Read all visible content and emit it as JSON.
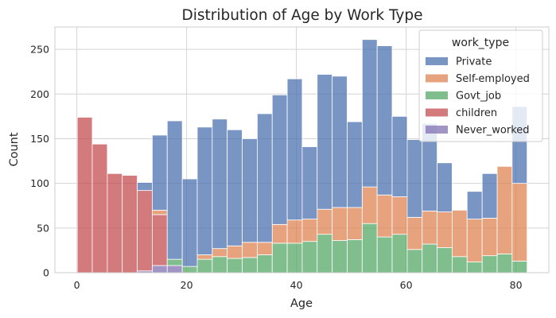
{
  "chart_data": {
    "type": "bar",
    "stacked": true,
    "title": "Distribution of Age by Work Type",
    "xlabel": "Age",
    "ylabel": "Count",
    "xlim": [
      -4,
      86
    ],
    "ylim": [
      0,
      275
    ],
    "x_ticks": [
      0,
      20,
      40,
      60,
      80
    ],
    "y_ticks": [
      0,
      50,
      100,
      150,
      200,
      250
    ],
    "grid": true,
    "legend_title": "work_type",
    "legend_position": "top-right",
    "bin_edges": [
      0.08,
      2.81,
      5.55,
      8.28,
      11.01,
      13.74,
      16.47,
      19.21,
      21.94,
      24.67,
      27.4,
      30.13,
      32.87,
      35.6,
      38.33,
      41.06,
      43.79,
      46.53,
      49.26,
      51.99,
      54.72,
      57.45,
      60.19,
      62.92,
      65.65,
      68.38,
      71.11,
      73.85,
      76.58,
      79.31,
      82.04
    ],
    "series": [
      {
        "name": "Never_worked",
        "color": "#8172b3",
        "values": [
          0,
          0,
          0,
          0,
          2,
          8,
          8,
          0,
          0,
          0,
          0,
          0,
          0,
          0,
          0,
          0,
          0,
          0,
          0,
          0,
          0,
          0,
          0,
          0,
          0,
          0,
          0,
          0,
          0,
          0
        ]
      },
      {
        "name": "children",
        "color": "#c44e52",
        "values": [
          174,
          144,
          111,
          109,
          90,
          57,
          0,
          0,
          0,
          0,
          0,
          0,
          0,
          0,
          0,
          0,
          0,
          0,
          0,
          0,
          0,
          0,
          0,
          0,
          0,
          0,
          0,
          0,
          0,
          0
        ]
      },
      {
        "name": "Govt_job",
        "color": "#55a868",
        "values": [
          0,
          0,
          0,
          0,
          0,
          0,
          7,
          7,
          15,
          18,
          16,
          17,
          20,
          33,
          33,
          35,
          43,
          36,
          37,
          55,
          40,
          43,
          26,
          32,
          28,
          18,
          12,
          19,
          21,
          13
        ]
      },
      {
        "name": "Self-employed",
        "color": "#dd8452",
        "values": [
          0,
          0,
          0,
          0,
          0,
          5,
          0,
          0,
          5,
          9,
          14,
          17,
          14,
          21,
          26,
          25,
          28,
          37,
          36,
          41,
          47,
          42,
          36,
          37,
          40,
          52,
          48,
          42,
          98,
          87
        ]
      },
      {
        "name": "Private",
        "color": "#4c72b0",
        "values": [
          0,
          0,
          0,
          0,
          9,
          84,
          155,
          98,
          143,
          145,
          130,
          116,
          144,
          145,
          158,
          81,
          151,
          147,
          96,
          165,
          167,
          90,
          87,
          98,
          55,
          0,
          31,
          50,
          0,
          86
        ]
      }
    ]
  }
}
